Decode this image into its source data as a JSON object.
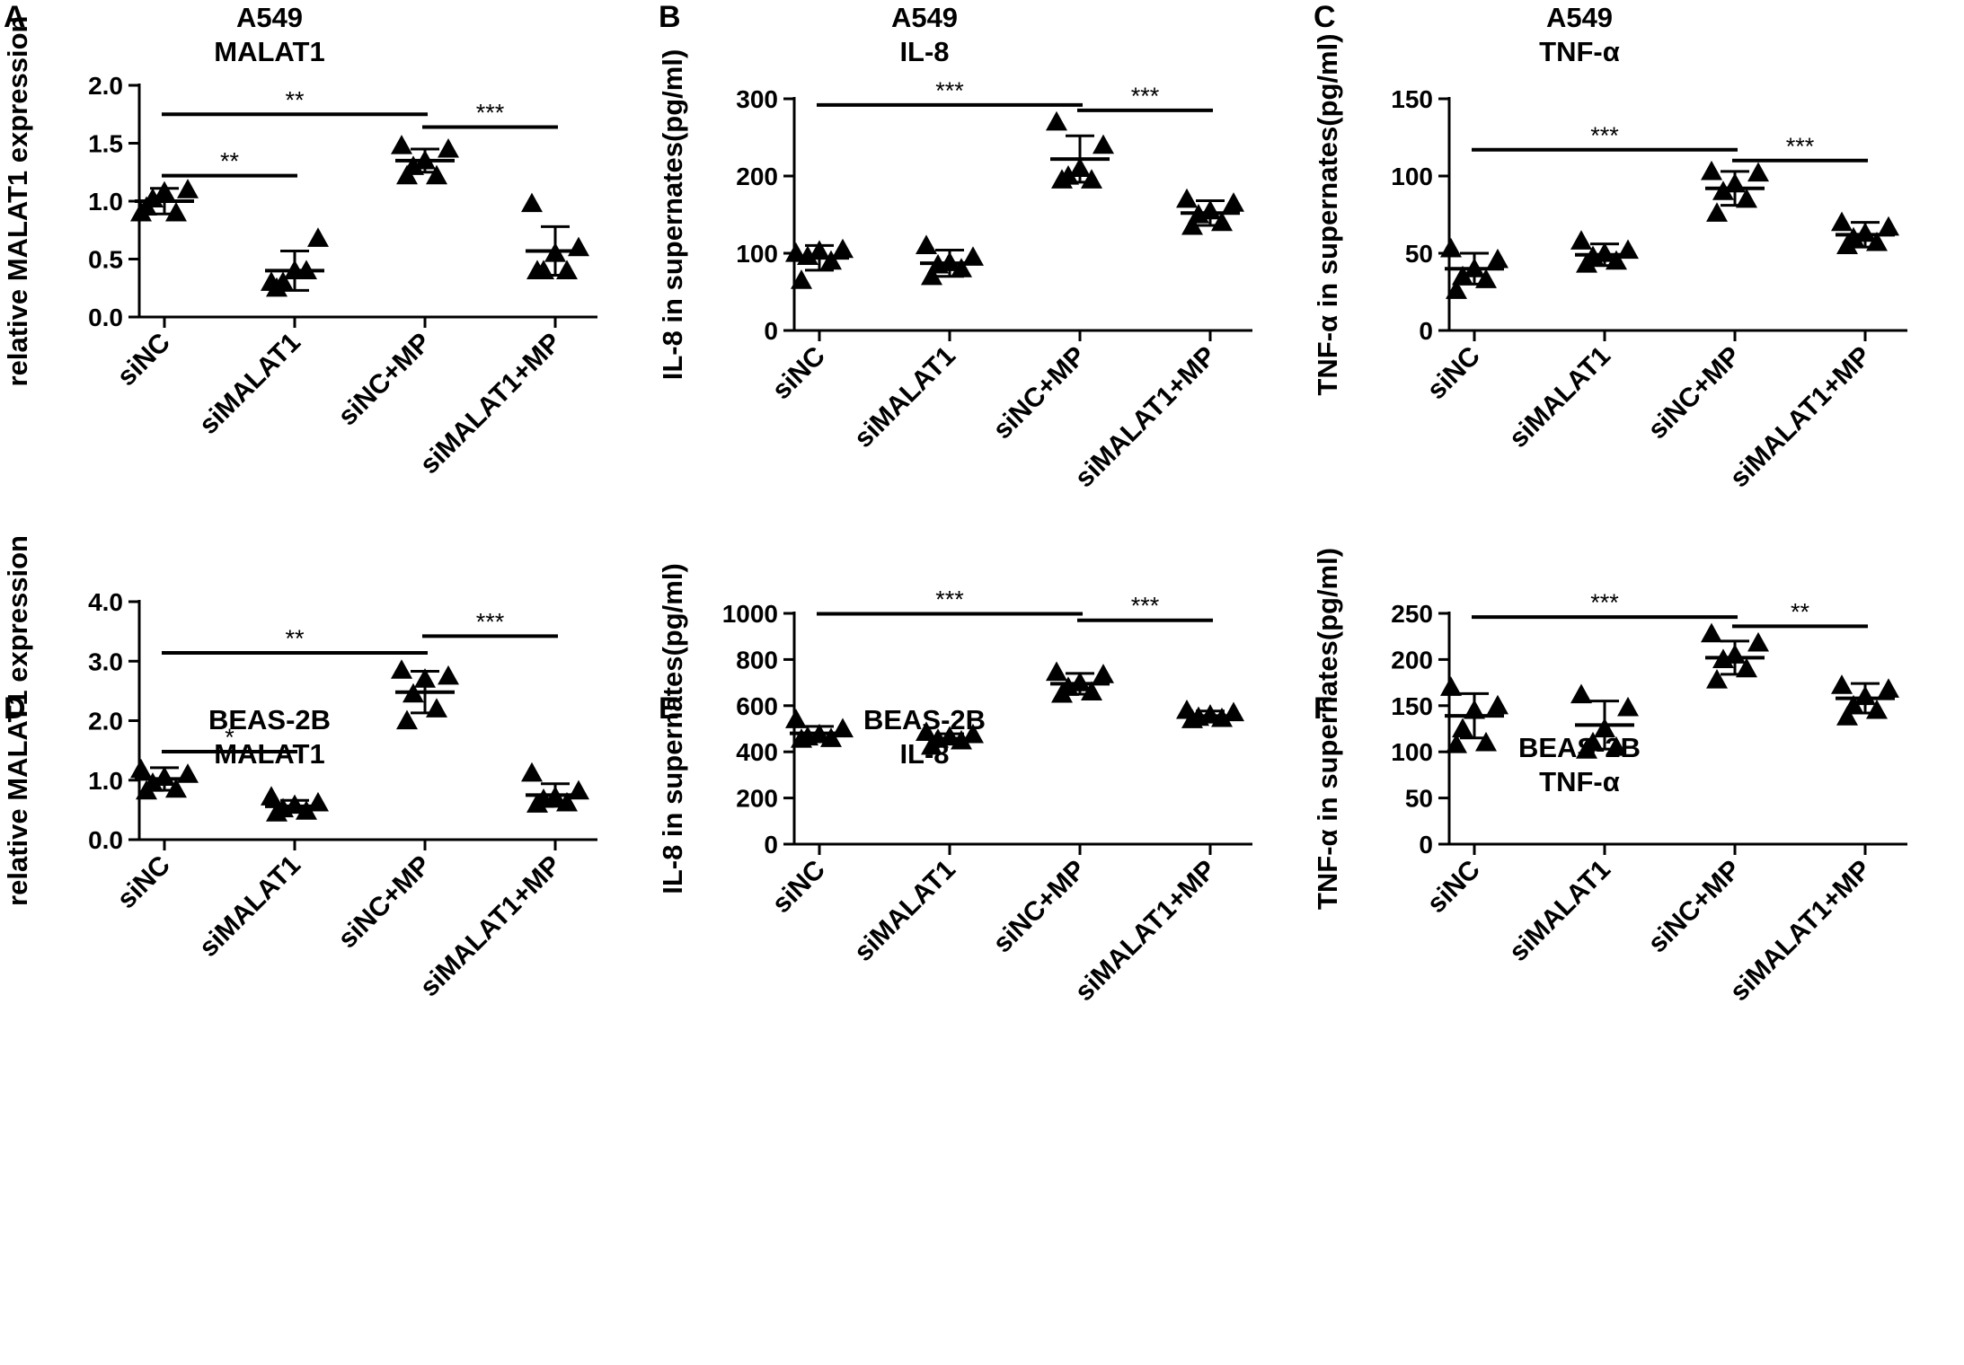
{
  "figure": {
    "panels": [
      {
        "id": "A",
        "title_line1": "A549",
        "title_line2": "MALAT1",
        "ylabel": "relative MALAT1 expression"
      },
      {
        "id": "B",
        "title_line1": "A549",
        "title_line2": "IL-8",
        "ylabel": "IL-8 in supernates(pg/ml)"
      },
      {
        "id": "C",
        "title_line1": "A549",
        "title_line2": "TNF-α",
        "ylabel": "TNF-α in supernates(pg/ml)"
      },
      {
        "id": "D",
        "title_line1": "BEAS-2B",
        "title_line2": "MALAT1",
        "ylabel": "relative MALAT1 expression"
      },
      {
        "id": "E",
        "title_line1": "BEAS-2B",
        "title_line2": "IL-8",
        "ylabel": "IL-8 in supernates(pg/ml)"
      },
      {
        "id": "F",
        "title_line1": "BEAS-2B",
        "title_line2": "TNF-α",
        "ylabel": "TNF-α in supernates(pg/ml)"
      }
    ]
  },
  "chart_data": [
    {
      "panel": "A",
      "type": "scatter",
      "title": "A549 MALAT1",
      "xlabel": "",
      "ylabel": "relative MALAT1 expression",
      "categories": [
        "siNC",
        "siMALAT1",
        "siNC+MP",
        "siMALAT1+MP"
      ],
      "ylim": [
        0,
        2.0
      ],
      "yticks": [
        0.0,
        0.5,
        1.0,
        1.5,
        2.0
      ],
      "ytick_labels": [
        "0.0",
        "0.5",
        "1.0",
        "1.5",
        "2.0"
      ],
      "points": [
        [
          0.9,
          1.1,
          1.08,
          1.02,
          0.9,
          0.95
        ],
        [
          0.3,
          0.68,
          0.4,
          0.3,
          0.4,
          0.25
        ],
        [
          1.48,
          1.45,
          1.35,
          1.3,
          1.22,
          1.22
        ],
        [
          0.98,
          0.6,
          0.55,
          0.4,
          0.4,
          0.4
        ]
      ],
      "mean": [
        1.0,
        0.4,
        1.35,
        0.57
      ],
      "sd": [
        0.11,
        0.17,
        0.1,
        0.21
      ],
      "significance": [
        {
          "from": 0,
          "to": 1,
          "label": "**",
          "y": 1.22
        },
        {
          "from": 0,
          "to": 2,
          "label": "**",
          "y": 1.75
        },
        {
          "from": 2,
          "to": 3,
          "label": "***",
          "y": 1.64
        }
      ]
    },
    {
      "panel": "B",
      "type": "scatter",
      "title": "A549 IL-8",
      "xlabel": "",
      "ylabel": "IL-8 in supernates(pg/ml)",
      "categories": [
        "siNC",
        "siMALAT1",
        "siNC+MP",
        "siMALAT1+MP"
      ],
      "ylim": [
        0,
        300
      ],
      "yticks": [
        0,
        100,
        200,
        300
      ],
      "ytick_labels": [
        "0",
        "100",
        "200",
        "300"
      ],
      "points": [
        [
          100,
          105,
          103,
          96,
          90,
          65
        ],
        [
          110,
          95,
          88,
          85,
          80,
          70
        ],
        [
          270,
          240,
          210,
          200,
          195,
          195
        ],
        [
          170,
          165,
          155,
          150,
          140,
          135
        ]
      ],
      "mean": [
        94,
        87,
        222,
        152
      ],
      "sd": [
        16,
        17,
        30,
        16
      ],
      "significance": [
        {
          "from": 0,
          "to": 2,
          "label": "***",
          "y": 292
        },
        {
          "from": 2,
          "to": 3,
          "label": "***",
          "y": 285
        }
      ]
    },
    {
      "panel": "C",
      "type": "scatter",
      "title": "A549 TNF-α",
      "xlabel": "",
      "ylabel": "TNF-α in supernates(pg/ml)",
      "categories": [
        "siNC",
        "siMALAT1",
        "siNC+MP",
        "siMALAT1+MP"
      ],
      "ylim": [
        0,
        150
      ],
      "yticks": [
        0,
        50,
        100,
        150
      ],
      "ytick_labels": [
        "0",
        "50",
        "100",
        "150"
      ],
      "points": [
        [
          53,
          46,
          40,
          35,
          33,
          26
        ],
        [
          58,
          52,
          50,
          48,
          45,
          43
        ],
        [
          103,
          102,
          95,
          90,
          85,
          76
        ],
        [
          70,
          67,
          63,
          60,
          57,
          55
        ]
      ],
      "mean": [
        40,
        49,
        92,
        62
      ],
      "sd": [
        10,
        7,
        11,
        8
      ],
      "significance": [
        {
          "from": 0,
          "to": 2,
          "label": "***",
          "y": 117
        },
        {
          "from": 2,
          "to": 3,
          "label": "***",
          "y": 110
        }
      ]
    },
    {
      "panel": "D",
      "type": "scatter",
      "title": "BEAS-2B MALAT1",
      "xlabel": "",
      "ylabel": "relative MALAT1 expression",
      "categories": [
        "siNC",
        "siMALAT1",
        "siNC+MP",
        "siMALAT1+MP"
      ],
      "ylim": [
        0,
        4.0
      ],
      "yticks": [
        0.0,
        1.0,
        2.0,
        3.0,
        4.0
      ],
      "ytick_labels": [
        "0.0",
        "1.0",
        "2.0",
        "3.0",
        "4.0"
      ],
      "points": [
        [
          1.18,
          1.1,
          1.05,
          0.95,
          0.85,
          0.82
        ],
        [
          0.72,
          0.62,
          0.58,
          0.52,
          0.48,
          0.45
        ],
        [
          2.85,
          2.75,
          2.7,
          2.45,
          2.2,
          2.0
        ],
        [
          1.12,
          0.82,
          0.72,
          0.68,
          0.62,
          0.6
        ]
      ],
      "mean": [
        1.02,
        0.56,
        2.48,
        0.75
      ],
      "sd": [
        0.19,
        0.1,
        0.35,
        0.19
      ],
      "significance": [
        {
          "from": 0,
          "to": 1,
          "label": "*",
          "y": 1.48
        },
        {
          "from": 0,
          "to": 2,
          "label": "**",
          "y": 3.14
        },
        {
          "from": 2,
          "to": 3,
          "label": "***",
          "y": 3.42
        }
      ]
    },
    {
      "panel": "E",
      "type": "scatter",
      "title": "BEAS-2B IL-8",
      "xlabel": "",
      "ylabel": "IL-8 in supernates(pg/ml)",
      "categories": [
        "siNC",
        "siMALAT1",
        "siNC+MP",
        "siMALAT1+MP"
      ],
      "ylim": [
        0,
        1000
      ],
      "yticks": [
        0,
        200,
        400,
        600,
        800,
        1000
      ],
      "ytick_labels": [
        "0",
        "200",
        "400",
        "600",
        "800",
        "1000"
      ],
      "points": [
        [
          540,
          500,
          475,
          465,
          458,
          455
        ],
        [
          485,
          475,
          465,
          455,
          448,
          425
        ],
        [
          745,
          735,
          700,
          680,
          660,
          650
        ],
        [
          580,
          570,
          560,
          550,
          545,
          540
        ]
      ],
      "mean": [
        480,
        457,
        695,
        555
      ],
      "sd": [
        30,
        21,
        45,
        22
      ],
      "significance": [
        {
          "from": 0,
          "to": 2,
          "label": "***",
          "y": 998
        },
        {
          "from": 2,
          "to": 3,
          "label": "***",
          "y": 970
        }
      ]
    },
    {
      "panel": "F",
      "type": "scatter",
      "title": "BEAS-2B TNF-α",
      "xlabel": "",
      "ylabel": "TNF-α in supernates(pg/ml)",
      "categories": [
        "siNC",
        "siMALAT1",
        "siNC+MP",
        "siMALAT1+MP"
      ],
      "ylim": [
        0,
        250
      ],
      "yticks": [
        0,
        50,
        100,
        150,
        200,
        250
      ],
      "ytick_labels": [
        "0",
        "50",
        "100",
        "150",
        "200",
        "250"
      ],
      "points": [
        [
          170,
          150,
          145,
          125,
          110,
          108
        ],
        [
          162,
          148,
          125,
          110,
          105,
          102
        ],
        [
          228,
          218,
          205,
          200,
          190,
          178
        ],
        [
          172,
          168,
          160,
          150,
          145,
          138
        ]
      ],
      "mean": [
        139,
        129,
        202,
        158
      ],
      "sd": [
        24,
        26,
        18,
        16
      ],
      "significance": [
        {
          "from": 0,
          "to": 2,
          "label": "***",
          "y": 246
        },
        {
          "from": 2,
          "to": 3,
          "label": "**",
          "y": 236
        }
      ]
    }
  ]
}
